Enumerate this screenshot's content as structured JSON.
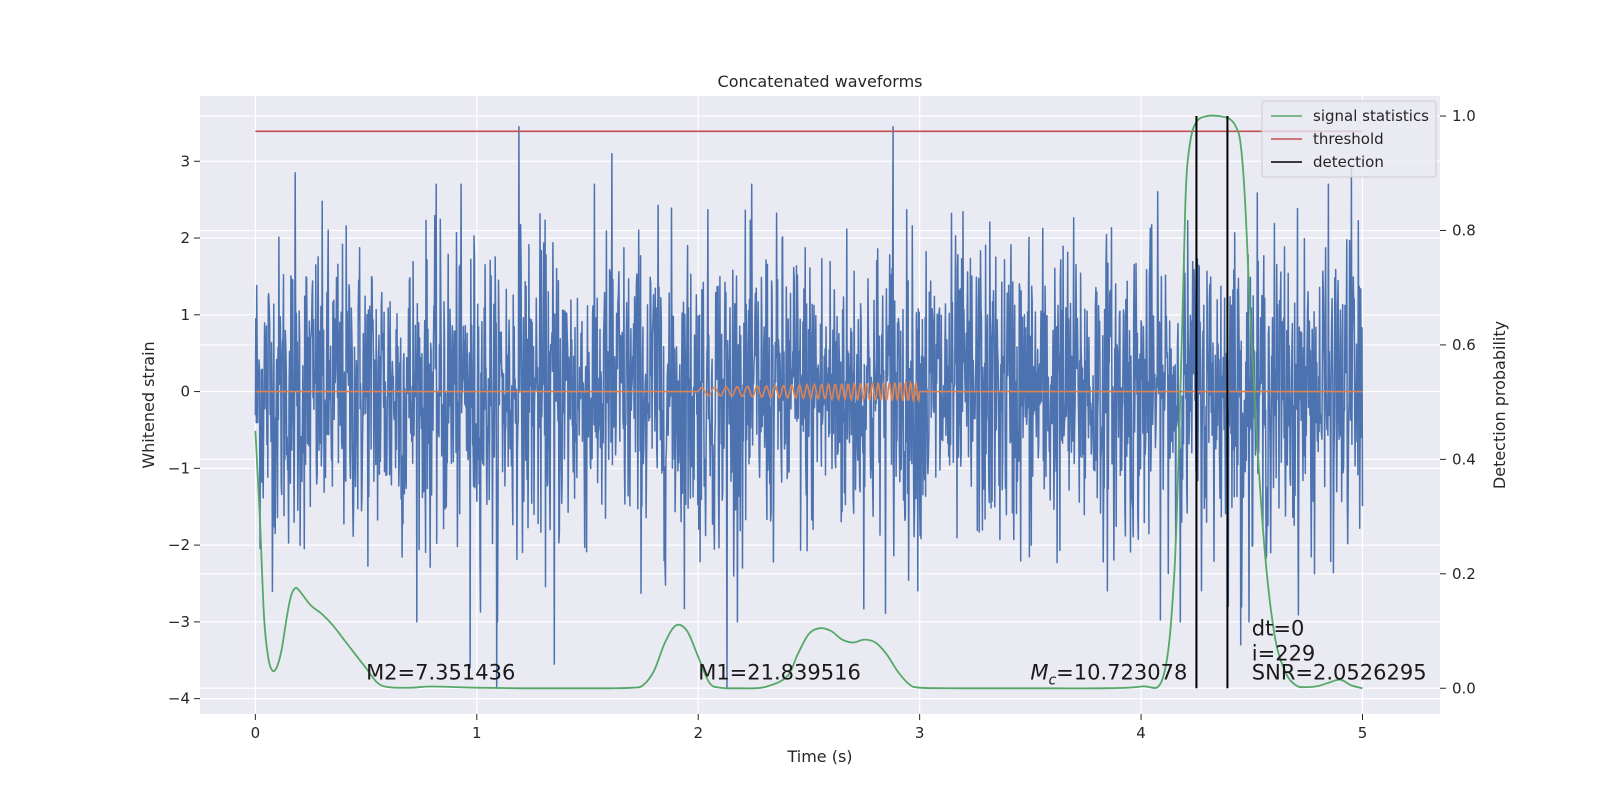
{
  "chart_data": {
    "type": "line",
    "title": "Concatenated waveforms",
    "xlabel": "Time (s)",
    "ylabel": "Whitened strain",
    "ylabel_right": "Detection probability",
    "xlim": [
      -0.25,
      5.35
    ],
    "ylim": [
      -4.2,
      3.85
    ],
    "ylim_right": [
      -0.045,
      1.035
    ],
    "xticks": [
      0,
      1,
      2,
      3,
      4,
      5
    ],
    "xtick_labels": [
      "0",
      "1",
      "2",
      "3",
      "4",
      "5"
    ],
    "yticks": [
      3,
      2,
      1,
      0,
      -1,
      -2,
      -3,
      -4
    ],
    "ytick_labels": [
      "3",
      "2",
      "1",
      "0",
      "−1",
      "−2",
      "−3",
      "−4"
    ],
    "yticks_right": [
      1.0,
      0.8,
      0.6,
      0.4,
      0.2,
      0.0
    ],
    "ytick_labels_right": [
      "1.0",
      "0.8",
      "0.6",
      "0.4",
      "0.2",
      "0.0"
    ],
    "grid": true,
    "legend_position": "top-right",
    "legend": [
      {
        "label": "signal statistics",
        "color": "#55a868"
      },
      {
        "label": "threshold",
        "color": "#c44e52"
      },
      {
        "label": "detection",
        "color": "#000000"
      }
    ],
    "series": [
      {
        "role": "whitened-strain-noise",
        "color": "#4c72b0",
        "x_range": [
          0,
          5
        ],
        "typical_amplitude": 1.6,
        "peak_values": [
          {
            "x": 1.19,
            "y": 3.45
          },
          {
            "x": 2.88,
            "y": 3.45
          },
          {
            "x": 1.61,
            "y": 3.1
          },
          {
            "x": 0.97,
            "y": 3.0
          },
          {
            "x": 0.18,
            "y": 2.85
          },
          {
            "x": 4.95,
            "y": 2.9
          },
          {
            "x": 2.13,
            "y": -3.85
          },
          {
            "x": 1.09,
            "y": -3.85
          },
          {
            "x": 0.97,
            "y": -3.6
          },
          {
            "x": 1.35,
            "y": -3.55
          },
          {
            "x": 4.45,
            "y": -3.3
          }
        ]
      },
      {
        "role": "injected-chirp",
        "color": "#dd8452",
        "x_range": [
          0,
          5
        ],
        "chirp_start": 2.0,
        "chirp_end": 3.0,
        "amplitude_start": 0.05,
        "amplitude_end": 0.13
      },
      {
        "name": "signal statistics",
        "axis": "right",
        "color": "#55a868",
        "x": [
          0,
          0.02,
          0.04,
          0.06,
          0.08,
          0.1,
          0.12,
          0.14,
          0.16,
          0.18,
          0.2,
          0.25,
          0.3,
          0.35,
          0.4,
          0.45,
          0.5,
          0.55,
          0.6,
          0.7,
          0.8,
          1.0,
          1.2,
          1.4,
          1.6,
          1.7,
          1.75,
          1.8,
          1.85,
          1.9,
          1.95,
          2.0,
          2.05,
          2.1,
          2.2,
          2.3,
          2.4,
          2.45,
          2.5,
          2.55,
          2.6,
          2.65,
          2.7,
          2.75,
          2.8,
          2.85,
          2.9,
          2.95,
          3.0,
          3.2,
          3.4,
          3.6,
          3.8,
          4.0,
          4.1,
          4.15,
          4.18,
          4.2,
          4.22,
          4.25,
          4.3,
          4.35,
          4.4,
          4.43,
          4.45,
          4.47,
          4.5,
          4.55,
          4.6,
          4.65,
          4.7,
          4.75,
          4.8,
          4.85,
          4.9,
          4.95,
          5.0
        ],
        "y": [
          0.45,
          0.3,
          0.12,
          0.05,
          0.03,
          0.04,
          0.07,
          0.12,
          0.16,
          0.175,
          0.17,
          0.145,
          0.13,
          0.11,
          0.085,
          0.06,
          0.035,
          0.01,
          0.002,
          0.001,
          0.003,
          0.001,
          0.0,
          0.0,
          0.0,
          0.001,
          0.005,
          0.03,
          0.08,
          0.11,
          0.1,
          0.055,
          0.01,
          0.001,
          0.0,
          0.002,
          0.02,
          0.06,
          0.095,
          0.105,
          0.1,
          0.085,
          0.08,
          0.085,
          0.08,
          0.06,
          0.03,
          0.008,
          0.001,
          0.0,
          0.0,
          0.0,
          0.0,
          0.003,
          0.02,
          0.2,
          0.55,
          0.85,
          0.95,
          0.99,
          1.0,
          1.0,
          0.995,
          0.98,
          0.95,
          0.85,
          0.6,
          0.28,
          0.1,
          0.03,
          0.005,
          0.002,
          0.004,
          0.01,
          0.015,
          0.005,
          0.0
        ]
      },
      {
        "name": "threshold",
        "color": "#c44e52",
        "x": [
          0,
          5
        ],
        "y": [
          3.39,
          3.39
        ]
      }
    ],
    "detections": [
      4.25,
      4.39
    ],
    "detection_color": "#000000",
    "annotations": [
      {
        "text": "M2=7.351436",
        "x": 0.5,
        "y": -3.75
      },
      {
        "text": "M1=21.839516",
        "x": 2.0,
        "y": -3.75
      },
      {
        "math": true,
        "base": "M",
        "sub": "c",
        "rest": "=10.723078",
        "x": 3.5,
        "y": -3.75
      },
      {
        "text": "dt=0",
        "x": 4.5,
        "y": -3.18
      },
      {
        "text": "i=229",
        "x": 4.5,
        "y": -3.5
      },
      {
        "text": "SNR=2.0526295",
        "x": 4.5,
        "y": -3.75
      }
    ],
    "colors": {
      "axes_bg": "#eaeaf2",
      "grid": "#ffffff"
    }
  }
}
